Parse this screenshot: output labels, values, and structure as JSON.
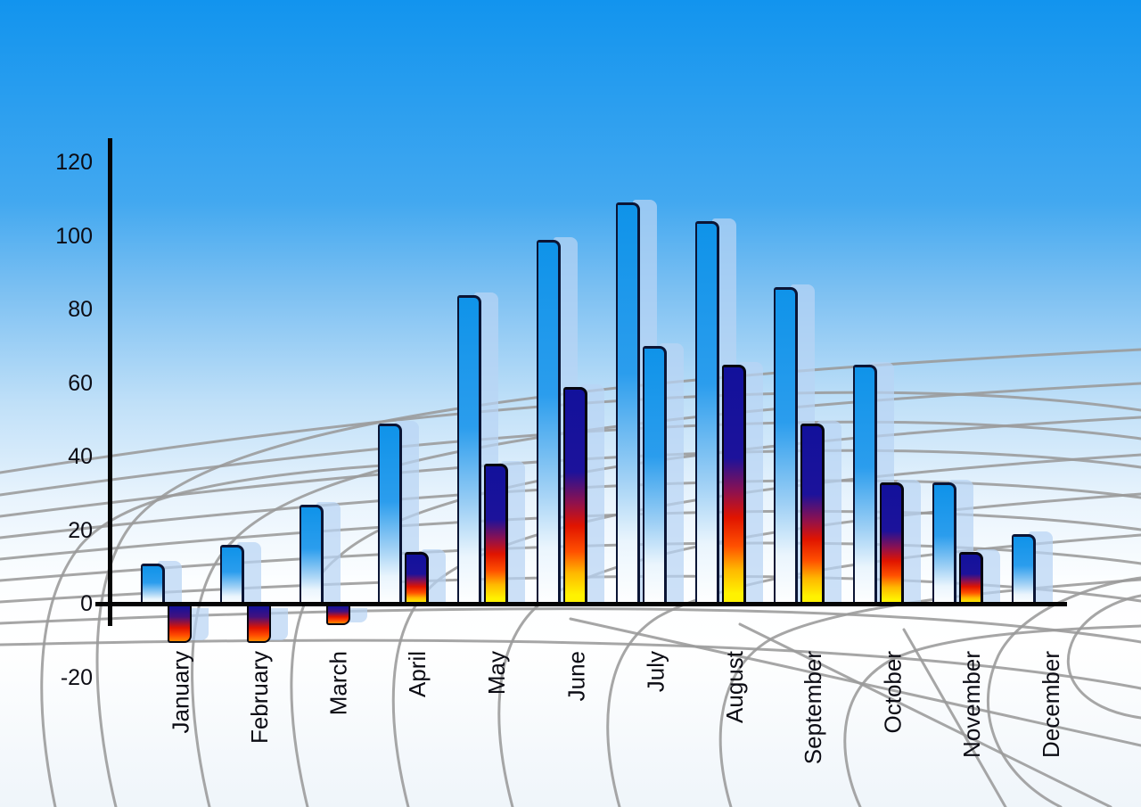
{
  "chart_data": {
    "type": "bar",
    "title": "",
    "legend": "none",
    "categories": [
      "January",
      "February",
      "March",
      "April",
      "May",
      "June",
      "July",
      "August",
      "September",
      "October",
      "November",
      "December"
    ],
    "series": [
      {
        "name": "series-1-blue-gradient",
        "values": [
          11,
          16,
          27,
          49,
          84,
          99,
          109,
          104,
          86,
          65,
          33,
          19
        ]
      },
      {
        "name": "series-2-flame-gradient",
        "values": [
          -10,
          -10,
          -5,
          14,
          38,
          59,
          70,
          65,
          49,
          33,
          14,
          null
        ],
        "bar_styles": [
          "flame",
          "flame",
          "flame",
          "flame",
          "flame",
          "flame",
          "blue",
          "flame",
          "flame",
          "flame",
          "flame",
          null
        ]
      }
    ],
    "y_axis": {
      "ticks": [
        120,
        100,
        80,
        60,
        40,
        20,
        0,
        -20
      ],
      "range": [
        -20,
        120
      ]
    },
    "x_axis": {
      "label_rotation_deg": -90
    },
    "grid": "gray curved perspective mesh behind bars",
    "background": "blue sky gradient fading to white"
  },
  "colors": {
    "sky_top": "#1294ee",
    "sky_bottom": "#ffffff",
    "bar_blue_top": "#0f93e9",
    "bar_white": "#ffffff",
    "flame_navy": "#12119b",
    "flame_red": "#e01400",
    "flame_yellow": "#fff200",
    "flame_orange": "#ff8a00",
    "shadow_bar": "rgba(185,212,244,0.72)",
    "axis_color": "#050505",
    "grid_line": "#9a9a9a",
    "label_text": "#0c0c14"
  }
}
